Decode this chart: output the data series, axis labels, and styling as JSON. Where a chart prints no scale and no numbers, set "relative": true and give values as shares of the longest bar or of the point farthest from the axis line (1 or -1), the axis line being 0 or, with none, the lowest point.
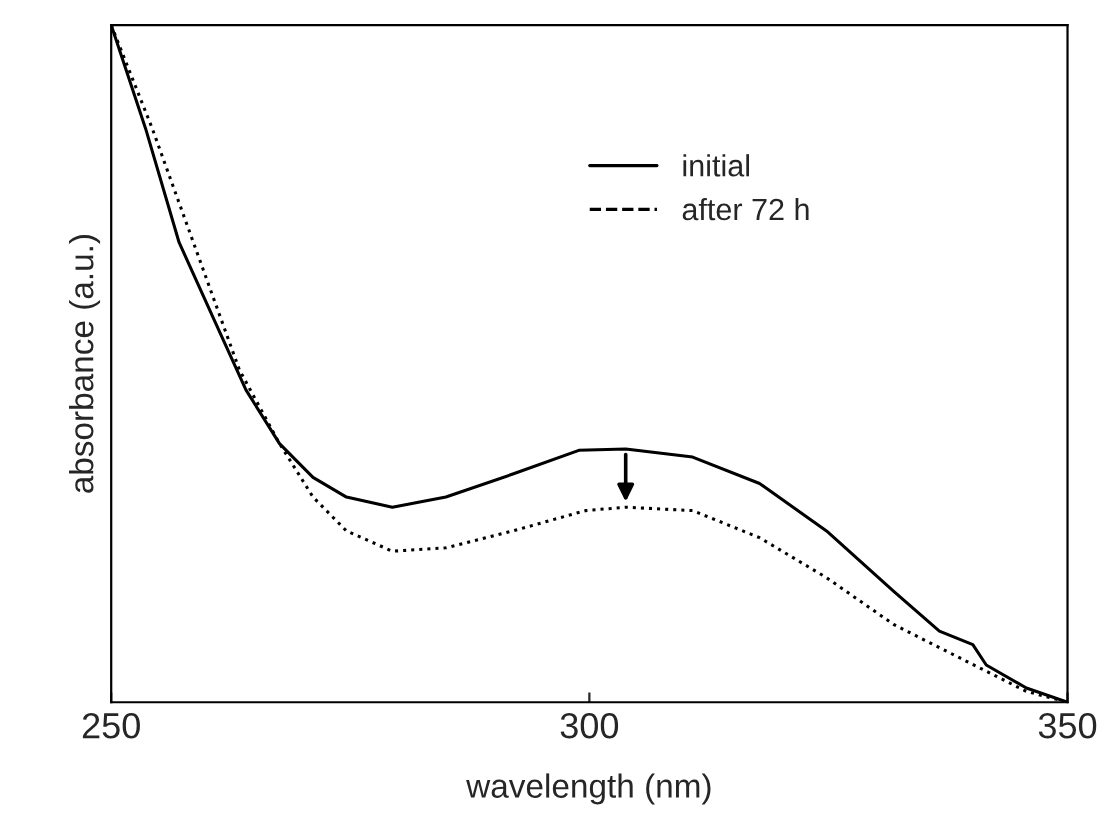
{
  "chart_data": {
    "type": "line",
    "xlabel": "wavelength (nm)",
    "ylabel": "absorbance (a.u.)",
    "relative": true,
    "xlim": [
      250,
      350
    ],
    "xticks": [
      250,
      300,
      350
    ],
    "legend": "top right",
    "grid": false,
    "series": [
      {
        "name": "initial",
        "color": "#000000",
        "line_style": "solid",
        "x": [
          250,
          253.6,
          257.1,
          260.6,
          264.1,
          267.6,
          271.1,
          274.6,
          279.4,
          285.0,
          292.0,
          298.9,
          303.8,
          310.8,
          317.8,
          324.8,
          331.8,
          336.6,
          340.1,
          341.5,
          345.7,
          350
        ],
        "values": [
          1.0,
          0.847,
          0.679,
          0.57,
          0.461,
          0.382,
          0.332,
          0.303,
          0.288,
          0.303,
          0.337,
          0.372,
          0.374,
          0.362,
          0.323,
          0.253,
          0.164,
          0.105,
          0.085,
          0.055,
          0.021,
          0.0
        ]
      },
      {
        "name": "after 72 h",
        "color": "#000000",
        "line_style": "dotted",
        "x": [
          250,
          254.3,
          263.4,
          267.6,
          271.1,
          274.6,
          279.4,
          285.0,
          292.0,
          299.6,
          303.8,
          310.8,
          317.8,
          324.8,
          331.8,
          338.8,
          345.7,
          350
        ],
        "values": [
          1.0,
          0.847,
          0.491,
          0.382,
          0.303,
          0.253,
          0.223,
          0.228,
          0.253,
          0.283,
          0.288,
          0.283,
          0.243,
          0.184,
          0.115,
          0.065,
          0.016,
          0.0
        ]
      }
    ]
  }
}
